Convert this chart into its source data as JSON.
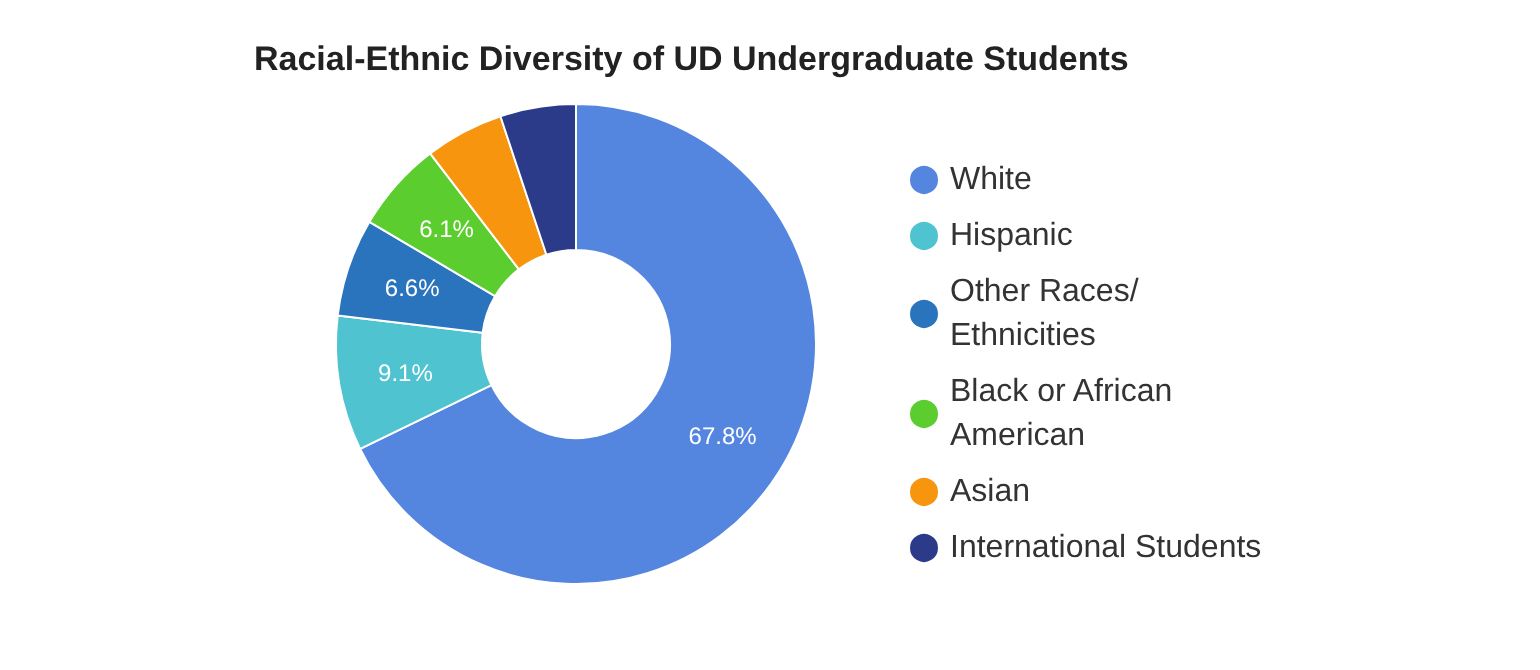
{
  "chart_data": {
    "type": "donut",
    "title": "Racial-Ethnic Diversity of UD Undergraduate Students",
    "categories": [
      "White",
      "Hispanic",
      "Other Races/ Ethnicities",
      "Black or African American",
      "Asian",
      "International Students"
    ],
    "values": [
      67.8,
      9.1,
      6.6,
      6.1,
      5.3,
      5.1
    ],
    "value_labels": [
      "67.8%",
      "9.1%",
      "6.6%",
      "6.1%",
      null,
      null
    ],
    "colors": [
      "#5486e0",
      "#4fc3cf",
      "#2a73bd",
      "#5ccd2f",
      "#f7950e",
      "#2c3a8a"
    ],
    "legend": "right"
  }
}
